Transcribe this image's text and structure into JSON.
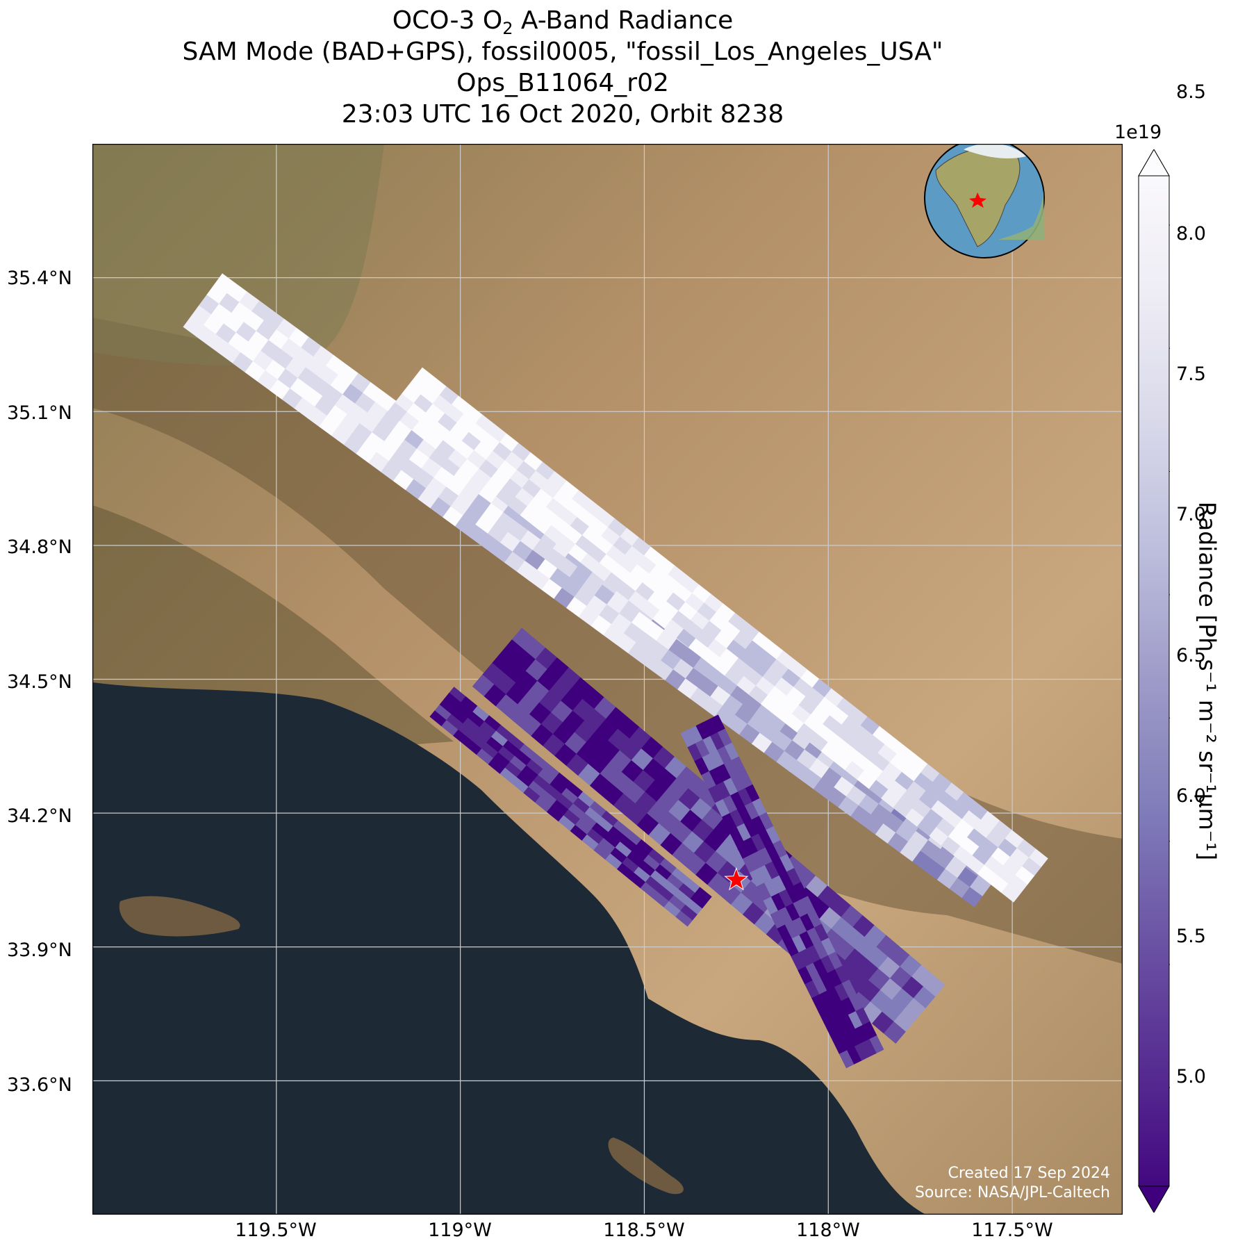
{
  "title": {
    "line1_prefix": "OCO-3 O",
    "line1_sub": "2",
    "line1_suffix": " A-Band Radiance",
    "line2": "SAM Mode (BAD+GPS), fossil0005, \"fossil_Los_Angeles_USA\"",
    "line3": "Ops_B11064_r02",
    "line4": "23:03 UTC 16 Oct 2020, Orbit 8238"
  },
  "axes": {
    "lat_labels": [
      "35.4°N",
      "35.1°N",
      "34.8°N",
      "34.5°N",
      "34.2°N",
      "33.9°N",
      "33.6°N"
    ],
    "lon_labels": [
      "119.5°W",
      "119°W",
      "118.5°W",
      "118°W",
      "117.5°W"
    ],
    "lat_values": [
      35.4,
      35.1,
      34.8,
      34.5,
      34.2,
      33.9,
      33.6
    ],
    "lon_values": [
      -119.5,
      -119.0,
      -118.5,
      -118.0,
      -117.5
    ],
    "lon_range": [
      -120.0,
      -117.2
    ],
    "lat_range": [
      33.3,
      35.7
    ]
  },
  "colorbar": {
    "exponent": "1e19",
    "ticks": [
      "5.0",
      "5.5",
      "6.0",
      "6.5",
      "7.0",
      "7.5",
      "8.0",
      "8.5"
    ],
    "tick_values": [
      5.0,
      5.5,
      6.0,
      6.5,
      7.0,
      7.5,
      8.0,
      8.5
    ],
    "range": [
      4.6,
      8.7
    ],
    "label": "Radiance [Ph s⁻¹ m⁻² sr⁻¹μm⁻¹]",
    "colors": [
      "#3f007d",
      "#54278f",
      "#6a51a3",
      "#807dba",
      "#9e9ac8",
      "#bcbddc",
      "#dadaeb",
      "#efedf5",
      "#fcfbfd"
    ]
  },
  "target": {
    "name": "fossil_Los_Angeles_USA",
    "lon": -118.25,
    "lat": 34.05,
    "marker_color": "#ff0000"
  },
  "credits": {
    "line1": "Created 17 Sep 2024",
    "line2": "Source: NASA/JPL-Caltech"
  },
  "colors": {
    "ocean": "#1d2a36",
    "land": "#b8926a",
    "gridline": "#cccccc"
  }
}
